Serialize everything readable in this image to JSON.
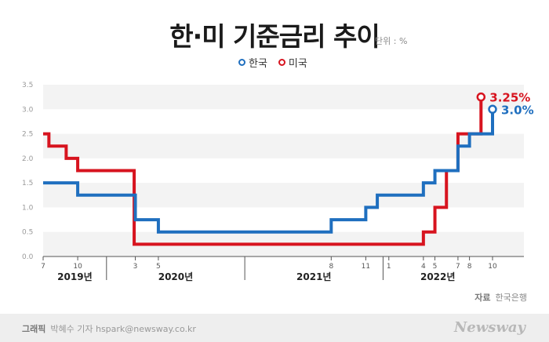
{
  "chart_data": {
    "type": "line",
    "step": true,
    "title": "한·미 기준금리 추이",
    "unit_label": "단위 : %",
    "ylim": [
      0,
      3.5
    ],
    "yticks": [
      "0.0",
      "0.5",
      "1.0",
      "1.5",
      "2.0",
      "2.5",
      "3.0",
      "3.5"
    ],
    "x_tick_labels": [
      {
        "label": "7",
        "t": 0
      },
      {
        "label": "10",
        "t": 3
      },
      {
        "label": "3",
        "t": 8
      },
      {
        "label": "5",
        "t": 10
      },
      {
        "label": "8",
        "t": 25
      },
      {
        "label": "11",
        "t": 28
      },
      {
        "label": "1",
        "t": 30
      },
      {
        "label": "4",
        "t": 33
      },
      {
        "label": "5",
        "t": 34
      },
      {
        "label": "7",
        "t": 36
      },
      {
        "label": "8",
        "t": 37
      },
      {
        "label": "10",
        "t": 39
      }
    ],
    "years": [
      {
        "label": "2019년",
        "start": -0.5,
        "end": 5.5
      },
      {
        "label": "2020년",
        "start": 5.5,
        "end": 17.5
      },
      {
        "label": "2021년",
        "start": 17.5,
        "end": 29.5
      },
      {
        "label": "2022년",
        "start": 29.5,
        "end": 39.5
      }
    ],
    "series": [
      {
        "name": "한국",
        "color": "#1f6fbf",
        "end_label": "3.0%",
        "steps": [
          [
            0,
            1.5
          ],
          [
            3,
            1.25
          ],
          [
            8,
            0.75
          ],
          [
            10,
            0.5
          ],
          [
            25,
            0.75
          ],
          [
            28,
            1.0
          ],
          [
            29,
            1.25
          ],
          [
            33,
            1.5
          ],
          [
            34,
            1.75
          ],
          [
            36,
            2.25
          ],
          [
            37,
            2.5
          ],
          [
            39,
            3.0
          ]
        ]
      },
      {
        "name": "미국",
        "color": "#d7141f",
        "end_label": "3.25%",
        "steps": [
          [
            0,
            2.5
          ],
          [
            0.5,
            2.25
          ],
          [
            2,
            2.0
          ],
          [
            3,
            1.75
          ],
          [
            7.9,
            0.25
          ],
          [
            33,
            0.5
          ],
          [
            34,
            1.0
          ],
          [
            35,
            1.75
          ],
          [
            36,
            2.5
          ],
          [
            38,
            3.25
          ]
        ]
      }
    ]
  },
  "source": {
    "label": "자료",
    "value": "한국은행"
  },
  "credit": {
    "label": "그래픽",
    "value": "박혜수 기자 hspark@newsway.co.kr"
  },
  "brand": "Newsway"
}
